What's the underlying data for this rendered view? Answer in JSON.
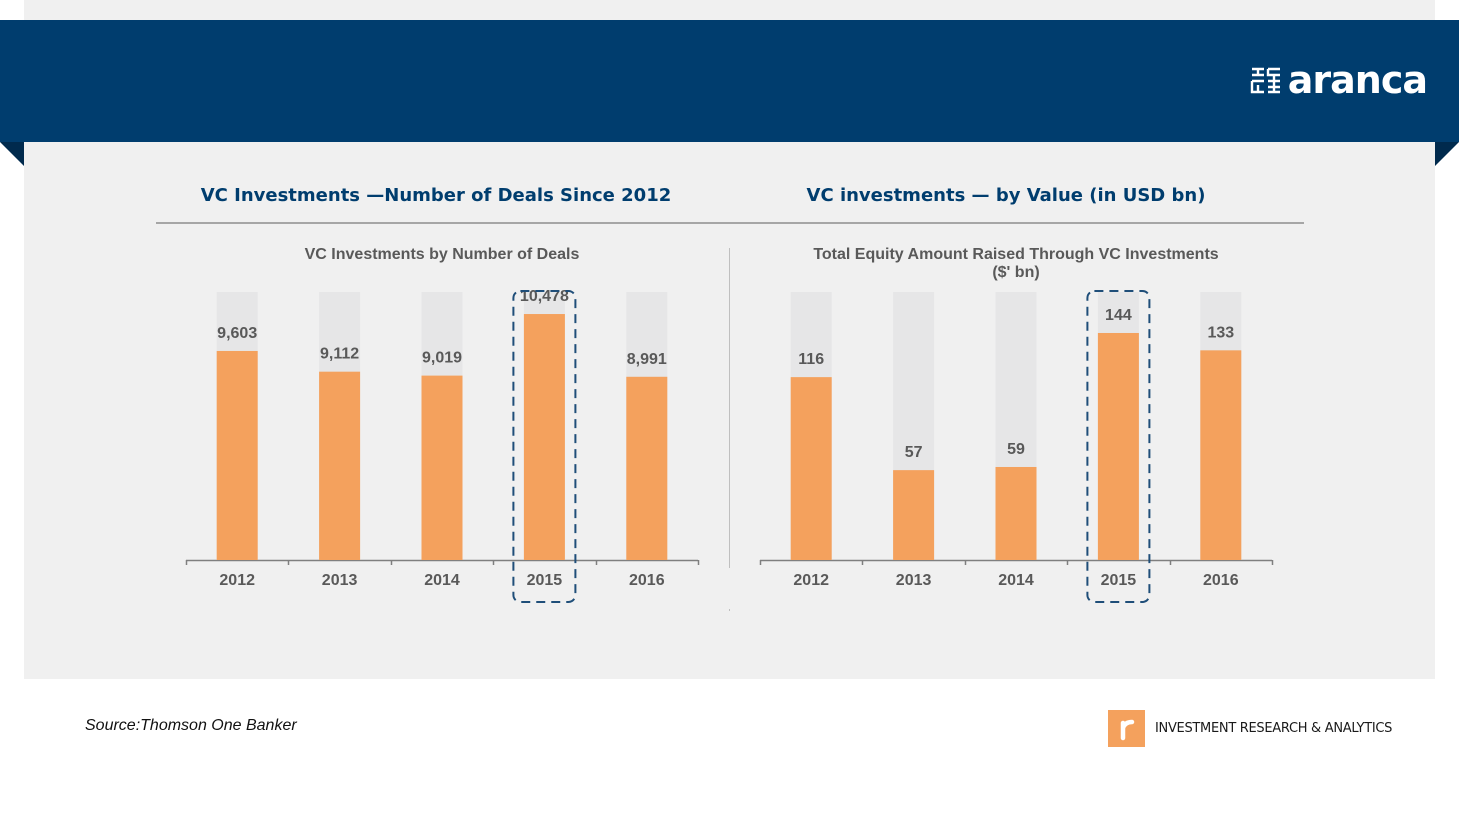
{
  "header": {
    "logo_text": "aranca"
  },
  "sections": {
    "left_title": "VC Investments —Number of Deals Since 2012",
    "right_title": "VC investments — by Value (in USD bn)"
  },
  "colors": {
    "banner": "#003d6e",
    "bar": "#f4a15d",
    "track": "#e6e6e7",
    "highlight": "#1f4e79"
  },
  "chart_data": [
    {
      "type": "bar",
      "title": "VC Investments by Number of Deals",
      "categories": [
        "2012",
        "2013",
        "2014",
        "2015",
        "2016"
      ],
      "values": [
        9603,
        9112,
        9019,
        10478,
        8991
      ],
      "value_labels": [
        "9,603",
        "9,112",
        "9,019",
        "10,478",
        "8,991"
      ],
      "ylim": [
        4650,
        11000
      ],
      "highlighted_category": "2015",
      "grid": false
    },
    {
      "type": "bar",
      "title": "Total  Equity Amount Raised Through VC Investments",
      "subtitle": "($' bn)",
      "categories": [
        "2012",
        "2013",
        "2014",
        "2015",
        "2016"
      ],
      "values": [
        116,
        57,
        59,
        144,
        133
      ],
      "value_labels": [
        "116",
        "57",
        "59",
        "144",
        "133"
      ],
      "ylim": [
        0,
        170
      ],
      "highlighted_category": "2015",
      "grid": false
    }
  ],
  "footer": {
    "source": "Source:Thomson One Banker",
    "tagline": "INVESTMENT RESEARCH & ANALYTICS"
  }
}
